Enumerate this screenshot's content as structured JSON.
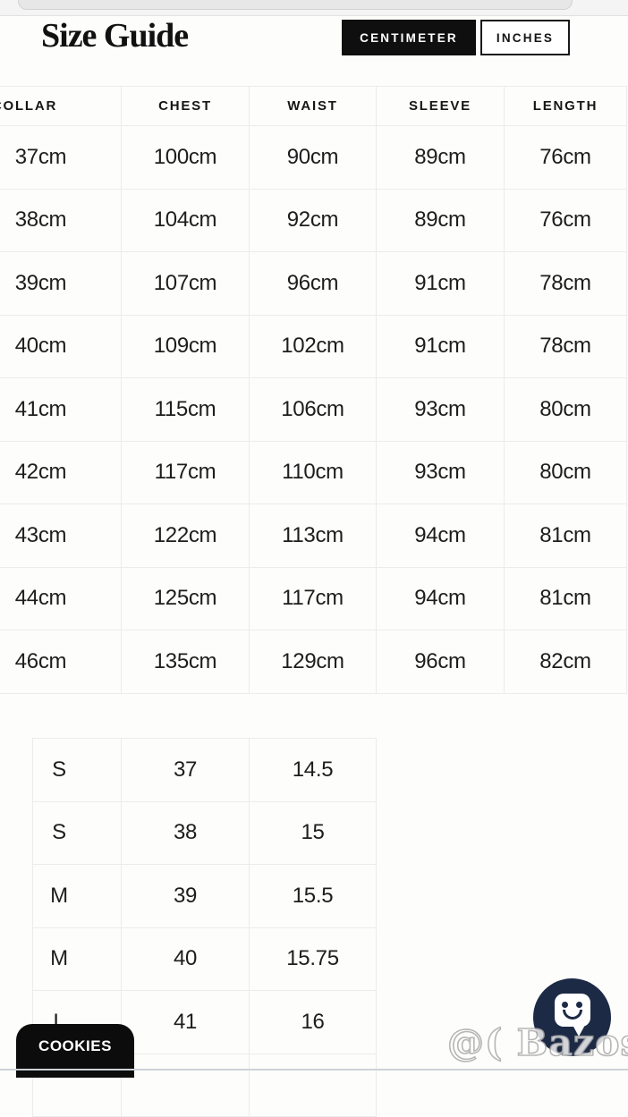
{
  "page": {
    "title": "Size Guide"
  },
  "unit_toggle": {
    "centimeter_label": "CENTIMETER",
    "inches_label": "INCHES",
    "selected": "CENTIMETER"
  },
  "cm_table": {
    "headers": [
      "COLLAR",
      "CHEST",
      "WAIST",
      "SLEEVE",
      "LENGTH"
    ],
    "rows": [
      [
        "37cm",
        "100cm",
        "90cm",
        "89cm",
        "76cm"
      ],
      [
        "38cm",
        "104cm",
        "92cm",
        "89cm",
        "76cm"
      ],
      [
        "39cm",
        "107cm",
        "96cm",
        "91cm",
        "78cm"
      ],
      [
        "40cm",
        "109cm",
        "102cm",
        "91cm",
        "78cm"
      ],
      [
        "41cm",
        "115cm",
        "106cm",
        "93cm",
        "80cm"
      ],
      [
        "42cm",
        "117cm",
        "110cm",
        "93cm",
        "80cm"
      ],
      [
        "43cm",
        "122cm",
        "113cm",
        "94cm",
        "81cm"
      ],
      [
        "44cm",
        "125cm",
        "117cm",
        "94cm",
        "81cm"
      ],
      [
        "46cm",
        "135cm",
        "129cm",
        "96cm",
        "82cm"
      ]
    ]
  },
  "size_table": {
    "rows": [
      [
        "S",
        "37",
        "14.5"
      ],
      [
        "S",
        "38",
        "15"
      ],
      [
        "M",
        "39",
        "15.5"
      ],
      [
        "M",
        "40",
        "15.75"
      ],
      [
        "L",
        "41",
        "16"
      ],
      [
        "",
        "",
        ""
      ]
    ]
  },
  "cookies_button": {
    "label": "COOKIES"
  },
  "chat": {
    "icon": "chat-smiley-icon"
  },
  "watermark": {
    "text": "@( Bazos.cz"
  },
  "colors": {
    "selected_button_bg": "#0f0f0f",
    "button_text": "#ffffff",
    "table_border": "#ececec",
    "chat_fab_bg": "#1d2a46",
    "cookies_bg": "#0c0c0c",
    "bottom_line": "#cdd2d8",
    "page_bg": "#fdfdfb"
  }
}
